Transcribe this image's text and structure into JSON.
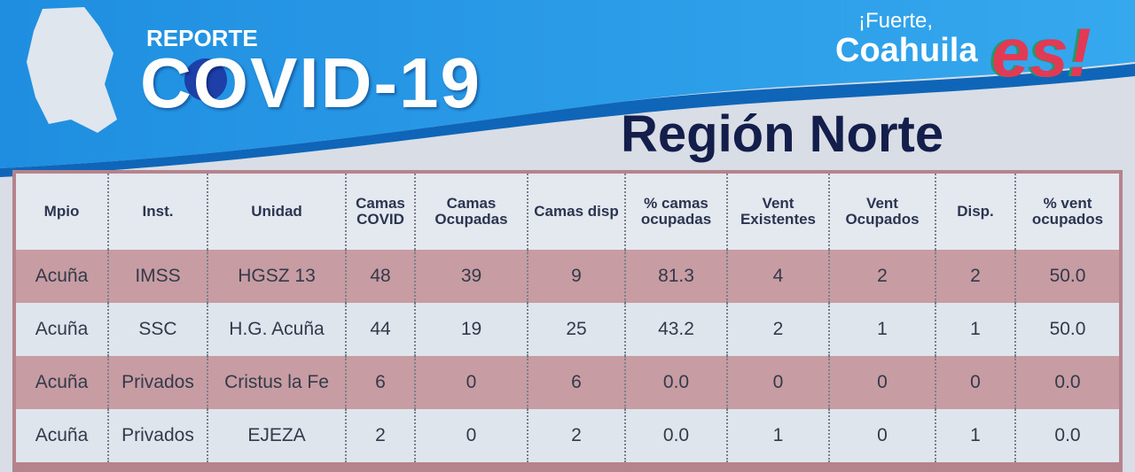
{
  "header": {
    "report": "REPORTE",
    "covid": "COVID-19",
    "slogan_1": "¡Fuerte,",
    "slogan_2": "Coahuila",
    "slogan_3": "es!"
  },
  "title": "Región Norte",
  "table": {
    "columns": [
      "Mpio",
      "Inst.",
      "Unidad",
      "Camas COVID",
      "Camas Ocupadas",
      "Camas disp",
      "% camas ocupadas",
      "Vent Existentes",
      "Vent Ocupados",
      "Disp.",
      "% vent ocupados"
    ],
    "rows": [
      [
        "Acuña",
        "IMSS",
        "HGSZ 13",
        "48",
        "39",
        "9",
        "81.3",
        "4",
        "2",
        "2",
        "50.0"
      ],
      [
        "Acuña",
        "SSC",
        "H.G. Acuña",
        "44",
        "19",
        "25",
        "43.2",
        "2",
        "1",
        "1",
        "50.0"
      ],
      [
        "Acuña",
        "Privados",
        "Cristus la Fe",
        "6",
        "0",
        "6",
        "0.0",
        "0",
        "0",
        "0",
        "0.0"
      ],
      [
        "Acuña",
        "Privados",
        "EJEZA",
        "2",
        "0",
        "2",
        "0.0",
        "1",
        "0",
        "1",
        "0.0"
      ]
    ]
  }
}
